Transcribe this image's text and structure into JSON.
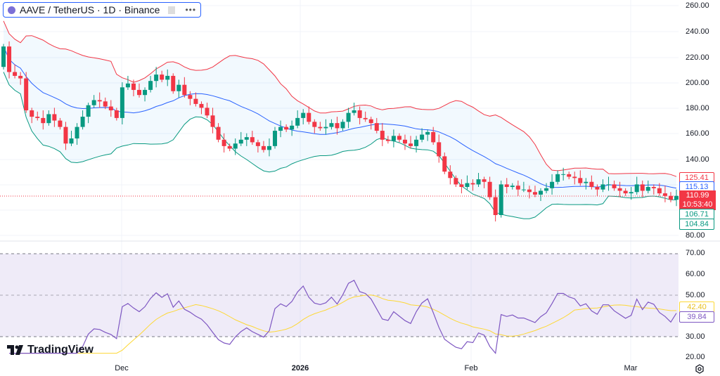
{
  "header": {
    "symbol": "AAVE / TetherUS · 1D · Binance",
    "more_label": "•••"
  },
  "price_axis": {
    "ticks": [
      "260.00",
      "240.00",
      "220.00",
      "200.00",
      "180.00",
      "160.00",
      "140.00",
      "80.00"
    ]
  },
  "price_labels": {
    "bb_upper": "125.41",
    "bb_basis": "115.13",
    "last_price": "110.99",
    "countdown": "10:53:40",
    "bb_lower": "106.71",
    "low_label": "104.84"
  },
  "rsi_axis": {
    "ticks": [
      "70.00",
      "60.00",
      "50.00",
      "30.00",
      "20.00"
    ]
  },
  "rsi_labels": {
    "rsi_ma": "42.40",
    "rsi": "39.84"
  },
  "time_axis": {
    "ticks": [
      "Dec",
      "2026",
      "Feb",
      "Mar"
    ]
  },
  "branding": {
    "logo": "TradingView"
  },
  "colors": {
    "up": "#089981",
    "down": "#f23645",
    "bb_upper": "#f23645",
    "bb_basis": "#2962ff",
    "bb_lower": "#089981",
    "rsi": "#7e57c2",
    "rsi_ma": "#fdd835"
  },
  "chart_data": {
    "type": "candlestick",
    "indicators": [
      "Bollinger Bands (20, 2)",
      "RSI (14) with MA"
    ],
    "ylim": [
      80,
      260
    ],
    "rsi_ylim": [
      20,
      75
    ],
    "rsi_levels": [
      70,
      50,
      30
    ],
    "closes": [
      228,
      208,
      205,
      203,
      178,
      173,
      172,
      168,
      175,
      170,
      165,
      152,
      156,
      165,
      173,
      182,
      186,
      185,
      181,
      178,
      172,
      196,
      199,
      194,
      190,
      194,
      201,
      206,
      202,
      205,
      193,
      198,
      190,
      187,
      183,
      180,
      174,
      165,
      155,
      150,
      148,
      152,
      155,
      157,
      153,
      150,
      147,
      150,
      162,
      165,
      163,
      166,
      172,
      176,
      169,
      165,
      164,
      165,
      168,
      164,
      169,
      176,
      178,
      172,
      171,
      168,
      162,
      155,
      154,
      158,
      155,
      152,
      150,
      155,
      159,
      161,
      153,
      142,
      130,
      125,
      120,
      118,
      121,
      120,
      124,
      122,
      110,
      96,
      120,
      118,
      119,
      116,
      116,
      114,
      112,
      115,
      117,
      122,
      128,
      128,
      126,
      125,
      121,
      122,
      118,
      116,
      120,
      120,
      117,
      115,
      113,
      114,
      120,
      115,
      118,
      117,
      113,
      111,
      108,
      110.99
    ],
    "first_open": 212
  }
}
